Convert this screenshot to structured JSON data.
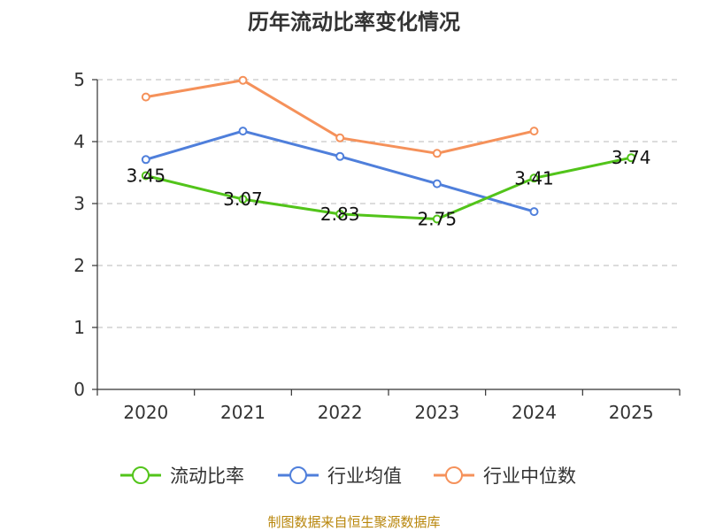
{
  "chart_data": {
    "type": "line",
    "title": "历年流动比率变化情况",
    "categories": [
      "2020",
      "2021",
      "2022",
      "2023",
      "2024",
      "2025"
    ],
    "ylim": [
      0,
      5
    ],
    "yticks": [
      "0",
      "1",
      "2",
      "3",
      "4",
      "5"
    ],
    "grid": true,
    "legend_position": "bottom",
    "series": [
      {
        "name": "流动比率",
        "color": "#52c41a",
        "values": [
          3.45,
          3.07,
          2.83,
          2.75,
          3.41,
          3.74
        ],
        "labels": [
          "3.45",
          "3.07",
          "2.83",
          "2.75",
          "3.41",
          "3.74"
        ]
      },
      {
        "name": "行业均值",
        "color": "#4f7fdb",
        "values": [
          3.71,
          4.17,
          3.76,
          3.32,
          2.87,
          null
        ]
      },
      {
        "name": "行业中位数",
        "color": "#f5915a",
        "values": [
          4.72,
          4.99,
          4.06,
          3.81,
          4.17,
          null
        ]
      }
    ],
    "source": "制图数据来自恒生聚源数据库"
  }
}
